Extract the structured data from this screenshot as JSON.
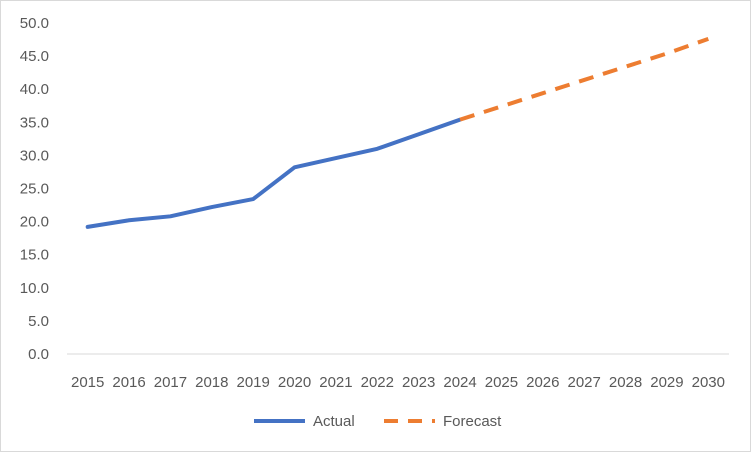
{
  "chart_data": {
    "type": "line",
    "title": "",
    "xlabel": "",
    "ylabel": "",
    "x": [
      "2015",
      "2016",
      "2017",
      "2018",
      "2019",
      "2020",
      "2021",
      "2022",
      "2023",
      "2024",
      "2025",
      "2026",
      "2027",
      "2028",
      "2029",
      "2030"
    ],
    "ylim": [
      0,
      50
    ],
    "y_ticks": [
      "0.0",
      "5.0",
      "10.0",
      "15.0",
      "20.0",
      "25.0",
      "30.0",
      "35.0",
      "40.0",
      "45.0",
      "50.0"
    ],
    "grid": false,
    "legend_position": "bottom",
    "series": [
      {
        "name": "Actual",
        "color": "#4472C4",
        "style": "solid",
        "x": [
          "2015",
          "2016",
          "2017",
          "2018",
          "2019",
          "2020",
          "2021",
          "2022",
          "2023",
          "2024"
        ],
        "values": [
          19.2,
          20.2,
          20.8,
          22.2,
          23.4,
          28.2,
          29.6,
          31.0,
          33.2,
          35.4
        ]
      },
      {
        "name": "Forecast",
        "color": "#ED7D31",
        "style": "dashed",
        "x": [
          "2024",
          "2025",
          "2026",
          "2027",
          "2028",
          "2029",
          "2030"
        ],
        "values": [
          35.4,
          37.4,
          39.4,
          41.4,
          43.4,
          45.4,
          47.6
        ]
      }
    ]
  }
}
